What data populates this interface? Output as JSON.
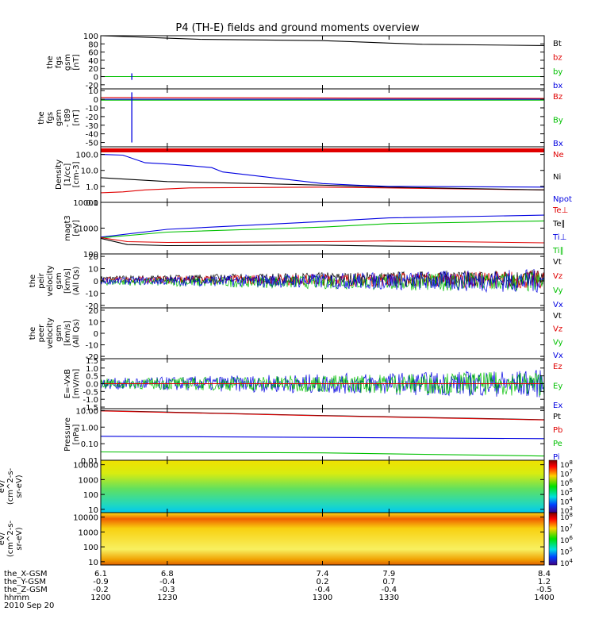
{
  "title": "P4 (TH-E) fields and ground moments overview",
  "date_label": "2010 Sep 20",
  "chart_data": [
    {
      "type": "line",
      "panel": "fgs-gsm",
      "ylabel": [
        "the",
        "fgs",
        "gsm",
        "[nT]"
      ],
      "yticks": [
        100,
        80,
        60,
        40,
        20,
        0,
        -20
      ],
      "ylim": [
        -30,
        100
      ],
      "legend": [
        {
          "name": "Bt",
          "color": "#000000"
        },
        {
          "name": "bz",
          "color": "#e00000"
        },
        {
          "name": "by",
          "color": "#00c000"
        },
        {
          "name": "bx",
          "color": "#0000e0"
        }
      ],
      "series": [
        {
          "name": "Bt",
          "color": "#000000",
          "x": [
            1200,
            1215,
            1230,
            1245,
            1300,
            1315,
            1330,
            1345,
            1400
          ],
          "y": [
            100,
            97,
            94,
            91,
            88,
            85,
            82,
            79,
            76
          ]
        },
        {
          "name": "by",
          "color": "#00c000",
          "x": [
            1200,
            1400
          ],
          "y": [
            0,
            0
          ]
        }
      ]
    },
    {
      "type": "line",
      "panel": "fgs-gsm-t89",
      "ylabel": [
        "the",
        "fgs",
        "gsm",
        "- t89",
        "[nT]"
      ],
      "yticks": [
        10,
        0,
        -10,
        -20,
        -30,
        -40,
        -50
      ],
      "ylim": [
        -55,
        12
      ],
      "legend": [
        {
          "name": "Bz",
          "color": "#e00000"
        },
        {
          "name": "By",
          "color": "#00c000"
        },
        {
          "name": "Bx",
          "color": "#0000e0"
        }
      ],
      "series": [
        {
          "name": "Bz",
          "color": "#e00000",
          "x": [
            1200,
            1400
          ],
          "y": [
            2,
            1
          ]
        },
        {
          "name": "By",
          "color": "#00c000",
          "x": [
            1200,
            1400
          ],
          "y": [
            -1,
            -1
          ]
        },
        {
          "name": "Bx",
          "color": "#0000e0",
          "x": [
            1200,
            1400
          ],
          "y": [
            0,
            0
          ]
        }
      ]
    },
    {
      "type": "line",
      "panel": "density",
      "ylabel": [
        "Density",
        "[1/cc]",
        "[cm-3]"
      ],
      "yticks": [
        "100.0",
        "10.0",
        "1.0",
        "0.1"
      ],
      "ylim": [
        0.1,
        300
      ],
      "yscale": "log",
      "legend": [
        {
          "name": "Ne",
          "color": "#e00000"
        },
        {
          "name": "Ni",
          "color": "#000000"
        },
        {
          "name": "Npot",
          "color": "#0000e0"
        }
      ],
      "series": [
        {
          "name": "Ne",
          "color": "#e00000",
          "x": [
            1200,
            1210,
            1220,
            1240,
            1300,
            1330,
            1400
          ],
          "y": [
            0.4,
            0.45,
            0.6,
            0.8,
            0.9,
            0.8,
            0.6
          ]
        },
        {
          "name": "Ni",
          "color": "#000000",
          "x": [
            1200,
            1230,
            1300,
            1330,
            1400
          ],
          "y": [
            3.5,
            2.0,
            1.2,
            0.9,
            0.6
          ]
        },
        {
          "name": "Npot",
          "color": "#0000e0",
          "x": [
            1200,
            1210,
            1220,
            1230,
            1240,
            1250,
            1255,
            1300,
            1315,
            1330,
            1400
          ],
          "y": [
            100,
            90,
            30,
            25,
            20,
            15,
            8,
            1.5,
            1.2,
            1.0,
            0.9
          ]
        }
      ]
    },
    {
      "type": "line",
      "panel": "temperature",
      "ylabel": [
        "magt3",
        "[eV]"
      ],
      "yticks": [
        "10000",
        "1000",
        "100"
      ],
      "ylim": [
        100,
        10000
      ],
      "yscale": "log",
      "legend": [
        {
          "name": "Te⊥",
          "color": "#e00000"
        },
        {
          "name": "Te∥",
          "color": "#000000"
        },
        {
          "name": "Ti⊥",
          "color": "#0000e0"
        },
        {
          "name": "Ti∥",
          "color": "#00c000"
        }
      ],
      "series": [
        {
          "name": "Ti⊥",
          "color": "#0000e0",
          "x": [
            1200,
            1230,
            1300,
            1330,
            1400
          ],
          "y": [
            450,
            900,
            1800,
            2500,
            3200
          ]
        },
        {
          "name": "Ti∥",
          "color": "#00c000",
          "x": [
            1200,
            1230,
            1300,
            1330,
            1400
          ],
          "y": [
            420,
            700,
            1100,
            1500,
            1900
          ]
        },
        {
          "name": "Te⊥",
          "color": "#e00000",
          "x": [
            1200,
            1212,
            1230,
            1300,
            1330,
            1400
          ],
          "y": [
            430,
            300,
            280,
            300,
            320,
            270
          ]
        },
        {
          "name": "Te∥",
          "color": "#000000",
          "x": [
            1200,
            1212,
            1230,
            1300,
            1330,
            1400
          ],
          "y": [
            400,
            230,
            210,
            220,
            200,
            180
          ]
        }
      ]
    },
    {
      "type": "line",
      "panel": "peir-velocity",
      "ylabel": [
        "the",
        "peir",
        "velocity",
        "gsm",
        "[km/s]",
        "(All Qs)"
      ],
      "yticks": [
        20,
        10,
        0,
        -10,
        -20
      ],
      "ylim": [
        -22,
        22
      ],
      "legend": [
        {
          "name": "Vt",
          "color": "#000000"
        },
        {
          "name": "Vz",
          "color": "#e00000"
        },
        {
          "name": "Vy",
          "color": "#00c000"
        },
        {
          "name": "Vx",
          "color": "#0000e0"
        }
      ],
      "series": []
    },
    {
      "type": "line",
      "panel": "peer-velocity",
      "ylabel": [
        "the",
        "peer",
        "velocity",
        "gsm",
        "[km/s]",
        "(All Qs)"
      ],
      "yticks": [
        20,
        10,
        0,
        -10,
        -20
      ],
      "ylim": [
        -22,
        22
      ],
      "legend": [
        {
          "name": "Vt",
          "color": "#000000"
        },
        {
          "name": "Vz",
          "color": "#e00000"
        },
        {
          "name": "Vy",
          "color": "#00c000"
        },
        {
          "name": "Vx",
          "color": "#0000e0"
        }
      ],
      "series": []
    },
    {
      "type": "line",
      "panel": "efield",
      "ylabel": [
        "E=-VxB",
        "[mV/m]"
      ],
      "yticks": [
        "1.5",
        "1.0",
        "0.5",
        "0.0",
        "-0.5",
        "-1.0",
        "-1.5"
      ],
      "ylim": [
        -1.6,
        1.6
      ],
      "legend": [
        {
          "name": "Ez",
          "color": "#e00000"
        },
        {
          "name": "Ey",
          "color": "#00c000"
        },
        {
          "name": "Ex",
          "color": "#0000e0"
        }
      ],
      "series": [
        {
          "name": "Ez",
          "color": "#e00000",
          "x": [
            1200,
            1400
          ],
          "y": [
            0,
            0
          ]
        }
      ]
    },
    {
      "type": "line",
      "panel": "pressure",
      "ylabel": [
        "Pressure",
        "[nPa]"
      ],
      "yticks": [
        "10.00",
        "1.00",
        "0.10",
        "0.01"
      ],
      "ylim": [
        0.01,
        13
      ],
      "yscale": "log",
      "legend": [
        {
          "name": "Pt",
          "color": "#000000"
        },
        {
          "name": "Pb",
          "color": "#e00000"
        },
        {
          "name": "Pe",
          "color": "#00c000"
        },
        {
          "name": "Pi",
          "color": "#0000e0"
        }
      ],
      "series": [
        {
          "name": "Pt",
          "color": "#000000",
          "x": [
            1200,
            1300,
            1400
          ],
          "y": [
            10,
            5,
            2.8
          ]
        },
        {
          "name": "Pb",
          "color": "#e00000",
          "x": [
            1200,
            1300,
            1400
          ],
          "y": [
            9.5,
            4.8,
            2.7
          ]
        },
        {
          "name": "Pi",
          "color": "#0000e0",
          "x": [
            1200,
            1300,
            1400
          ],
          "y": [
            0.28,
            0.24,
            0.2
          ]
        },
        {
          "name": "Pe",
          "color": "#00c000",
          "x": [
            1200,
            1300,
            1400
          ],
          "y": [
            0.032,
            0.028,
            0.018
          ]
        }
      ]
    },
    {
      "type": "heatmap",
      "panel": "peir-en-eflux",
      "ylabel": [
        "the",
        "peir",
        "en",
        "eflux",
        "eV/",
        "(cm^2-s-",
        "sr-eV)"
      ],
      "yticks": [
        "10000",
        "1000",
        "100",
        "10"
      ],
      "ylim": [
        6,
        20000
      ],
      "colorbar": [
        "10^8",
        "10^7",
        "10^6",
        "10^5",
        "10^4",
        "10^3"
      ]
    },
    {
      "type": "heatmap",
      "panel": "peer-en-eflux",
      "ylabel": [
        "the",
        "peer",
        "en",
        "eflux",
        "eV/",
        "(cm^2-s-",
        "sr-eV)"
      ],
      "yticks": [
        "10000",
        "1000",
        "100",
        "10"
      ],
      "ylim": [
        6,
        20000
      ],
      "colorbar": [
        "10^8",
        "10^7",
        "10^6",
        "10^5",
        "10^4"
      ]
    }
  ],
  "x_axis": {
    "tick_x": [
      1200,
      1230,
      1300,
      1330,
      1400
    ],
    "xlim": [
      1200,
      1400
    ],
    "rows": [
      {
        "label": "the_X-GSM",
        "values": [
          "6.1",
          "6.8",
          "7.4",
          "7.9",
          "8.4"
        ]
      },
      {
        "label": "the_Y-GSM",
        "values": [
          "-0.9",
          "-0.4",
          "0.2",
          "0.7",
          "1.2"
        ]
      },
      {
        "label": "the_Z-GSM",
        "values": [
          "-0.2",
          "-0.3",
          "-0.4",
          "-0.4",
          "-0.5"
        ]
      },
      {
        "label": "hhmm",
        "values": [
          "1200",
          "1230",
          "1300",
          "1330",
          "1400"
        ]
      }
    ]
  },
  "colors": {
    "red": "#e00000",
    "green": "#00c000",
    "blue": "#0000e0",
    "black": "#000000"
  }
}
